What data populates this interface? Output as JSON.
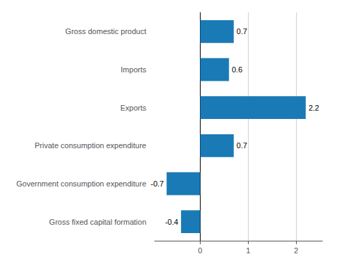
{
  "chart_data": {
    "type": "bar",
    "orientation": "horizontal",
    "categories": [
      "Gross fixed capital formation",
      "Government consumption expenditure",
      "Private consumption expenditure",
      "Exports",
      "Imports",
      "Gross domestic product"
    ],
    "values": [
      -0.4,
      -0.7,
      0.7,
      2.2,
      0.6,
      0.7
    ],
    "color": "#1a7ab5",
    "xlim": [
      -0.95,
      2.55
    ],
    "xticks": [
      0,
      1,
      2
    ],
    "grid": true,
    "data_labels": true
  }
}
